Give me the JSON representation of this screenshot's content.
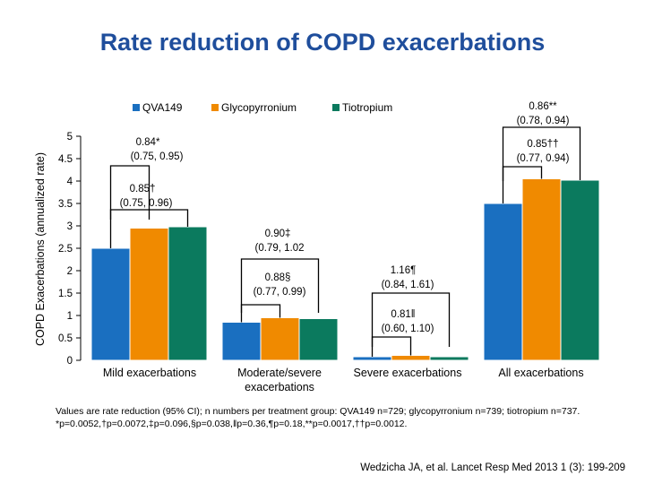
{
  "title": "Rate reduction of COPD exacerbations",
  "footnotes": [
    "Values are rate reduction (95% CI); n numbers per treatment group: QVA149 n=729; glycopyrronium n=739; tiotropium n=737.",
    "*p=0.0052,†p=0.0072,‡p=0.096,§p=0.038,ǁp=0.36,¶p=0.18,**p=0.0017,††p=0.0012."
  ],
  "reference": "Wedzicha JA, et al. Lancet Resp Med 2013 1 (3): 199-209",
  "chart_data": {
    "type": "bar",
    "ylabel": "COPD Exacerbations (annualized rate)",
    "xlabel": "",
    "ylim": [
      0,
      5
    ],
    "yticks": [
      "0",
      "0.5",
      "1",
      "1.5",
      "2",
      "2.5",
      "3",
      "3.5",
      "4",
      "4.5",
      "5"
    ],
    "grid": false,
    "legend_position": "top",
    "categories": [
      "Mild exacerbations",
      "Moderate/severe exacerbations",
      "Severe exacerbations",
      "All exacerbations"
    ],
    "category_lines": [
      [
        "Mild exacerbations"
      ],
      [
        "Moderate/severe",
        "exacerbations"
      ],
      [
        "Severe exacerbations"
      ],
      [
        "All exacerbations"
      ]
    ],
    "series": [
      {
        "name": "QVA149",
        "color": "#1A6FC0",
        "values": [
          2.5,
          0.85,
          0.08,
          3.5
        ]
      },
      {
        "name": "Glycopyrronium",
        "color": "#F08A00",
        "values": [
          2.95,
          0.95,
          0.11,
          4.05
        ]
      },
      {
        "name": "Tiotropium",
        "color": "#0B7A5E",
        "values": [
          2.98,
          0.93,
          0.08,
          4.02
        ]
      }
    ],
    "annotations": [
      {
        "category": 0,
        "from": 0,
        "to": 1,
        "value_line": "0.84*",
        "ci_line": "(0.75, 0.95)"
      },
      {
        "category": 0,
        "from": 0,
        "to": 2,
        "value_line": "0.85†",
        "ci_line": "(0.75, 0.96)"
      },
      {
        "category": 1,
        "from": 0,
        "to": 2,
        "value_line": "0.90‡",
        "ci_line": "(0.79, 1.02"
      },
      {
        "category": 1,
        "from": 0,
        "to": 1,
        "value_line": "0.88§",
        "ci_line": "(0.77, 0.99)"
      },
      {
        "category": 2,
        "from": 0,
        "to": 2,
        "value_line": "1.16¶",
        "ci_line": "(0.84, 1.61)"
      },
      {
        "category": 2,
        "from": 0,
        "to": 1,
        "value_line": "0.81ǁ",
        "ci_line": "(0.60, 1.10)"
      },
      {
        "category": 3,
        "from": 0,
        "to": 2,
        "value_line": "0.86**",
        "ci_line": "(0.78, 0.94)"
      },
      {
        "category": 3,
        "from": 0,
        "to": 1,
        "value_line": "0.85††",
        "ci_line": "(0.77, 0.94)"
      }
    ]
  }
}
